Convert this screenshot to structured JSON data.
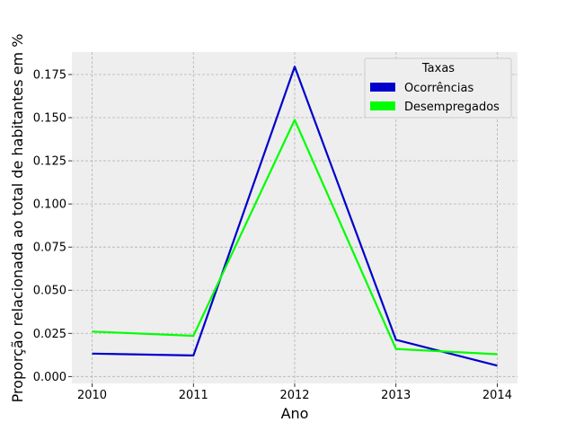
{
  "chart_data": {
    "type": "line",
    "title": "",
    "xlabel": "Ano",
    "ylabel": "Proporção relacionada ao total de habitantes em %",
    "x": [
      2010,
      2011,
      2012,
      2013,
      2014
    ],
    "x_tick_labels": [
      "2010",
      "2011",
      "2012",
      "2013",
      "2014"
    ],
    "xlim": [
      2009.8,
      2014.2
    ],
    "ylim": [
      -0.004,
      0.188
    ],
    "y_ticks": [
      0.0,
      0.025,
      0.05,
      0.075,
      0.1,
      0.125,
      0.15,
      0.175
    ],
    "y_tick_labels": [
      "0.000",
      "0.025",
      "0.050",
      "0.075",
      "0.100",
      "0.125",
      "0.150",
      "0.175"
    ],
    "grid": true,
    "legend": {
      "title": "Taxas",
      "placement": "top-right"
    },
    "series": [
      {
        "name": "Ocorrências",
        "color": "#0000cc",
        "values": [
          0.0133,
          0.0122,
          0.1795,
          0.0213,
          0.0063
        ]
      },
      {
        "name": "Desempregados",
        "color": "#00ff00",
        "values": [
          0.026,
          0.0236,
          0.1487,
          0.016,
          0.0129
        ]
      }
    ]
  }
}
